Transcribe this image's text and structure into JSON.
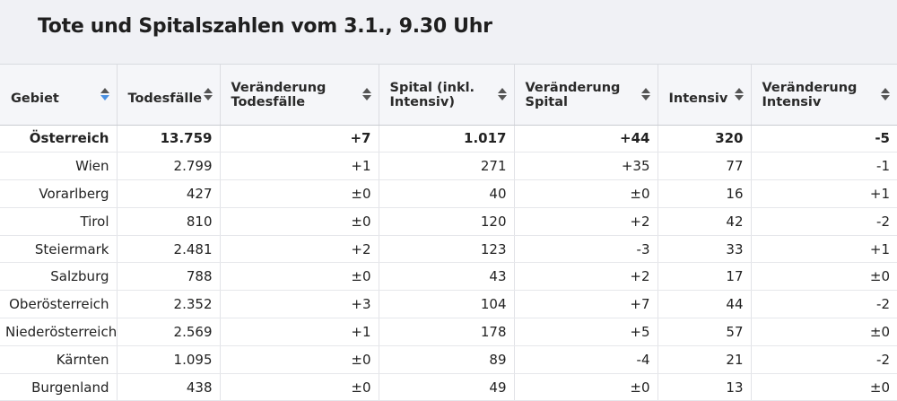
{
  "title": "Tote und Spitalszahlen vom 3.1., 9.30 Uhr",
  "columns": [
    {
      "label": "Gebiet",
      "sort": "active"
    },
    {
      "label": "Todesfälle",
      "sort": "none"
    },
    {
      "label": "Veränderung Todesfälle",
      "sort": "none"
    },
    {
      "label": "Spital (inkl. Intensiv)",
      "sort": "none"
    },
    {
      "label": "Veränderung Spital",
      "sort": "none"
    },
    {
      "label": "Intensiv",
      "sort": "none"
    },
    {
      "label": "Veränderung Intensiv",
      "sort": "none"
    }
  ],
  "rows": [
    {
      "gebiet": "Österreich",
      "todesfaelle": "13.759",
      "ver_todesfaelle": "+7",
      "spital": "1.017",
      "ver_spital": "+44",
      "intensiv": "320",
      "ver_intensiv": "-5",
      "bold": true
    },
    {
      "gebiet": "Wien",
      "todesfaelle": "2.799",
      "ver_todesfaelle": "+1",
      "spital": "271",
      "ver_spital": "+35",
      "intensiv": "77",
      "ver_intensiv": "-1"
    },
    {
      "gebiet": "Vorarlberg",
      "todesfaelle": "427",
      "ver_todesfaelle": "±0",
      "spital": "40",
      "ver_spital": "±0",
      "intensiv": "16",
      "ver_intensiv": "+1"
    },
    {
      "gebiet": "Tirol",
      "todesfaelle": "810",
      "ver_todesfaelle": "±0",
      "spital": "120",
      "ver_spital": "+2",
      "intensiv": "42",
      "ver_intensiv": "-2"
    },
    {
      "gebiet": "Steiermark",
      "todesfaelle": "2.481",
      "ver_todesfaelle": "+2",
      "spital": "123",
      "ver_spital": "-3",
      "intensiv": "33",
      "ver_intensiv": "+1"
    },
    {
      "gebiet": "Salzburg",
      "todesfaelle": "788",
      "ver_todesfaelle": "±0",
      "spital": "43",
      "ver_spital": "+2",
      "intensiv": "17",
      "ver_intensiv": "±0"
    },
    {
      "gebiet": "Oberösterreich",
      "todesfaelle": "2.352",
      "ver_todesfaelle": "+3",
      "spital": "104",
      "ver_spital": "+7",
      "intensiv": "44",
      "ver_intensiv": "-2"
    },
    {
      "gebiet": "Niederösterreich",
      "todesfaelle": "2.569",
      "ver_todesfaelle": "+1",
      "spital": "178",
      "ver_spital": "+5",
      "intensiv": "57",
      "ver_intensiv": "±0"
    },
    {
      "gebiet": "Kärnten",
      "todesfaelle": "1.095",
      "ver_todesfaelle": "±0",
      "spital": "89",
      "ver_spital": "-4",
      "intensiv": "21",
      "ver_intensiv": "-2"
    },
    {
      "gebiet": "Burgenland",
      "todesfaelle": "438",
      "ver_todesfaelle": "±0",
      "spital": "49",
      "ver_spital": "±0",
      "intensiv": "13",
      "ver_intensiv": "±0"
    }
  ],
  "colors": {
    "sort_active": "#4a90e2",
    "header_bg": "#f5f6f9",
    "title_bg": "#f0f1f5"
  }
}
